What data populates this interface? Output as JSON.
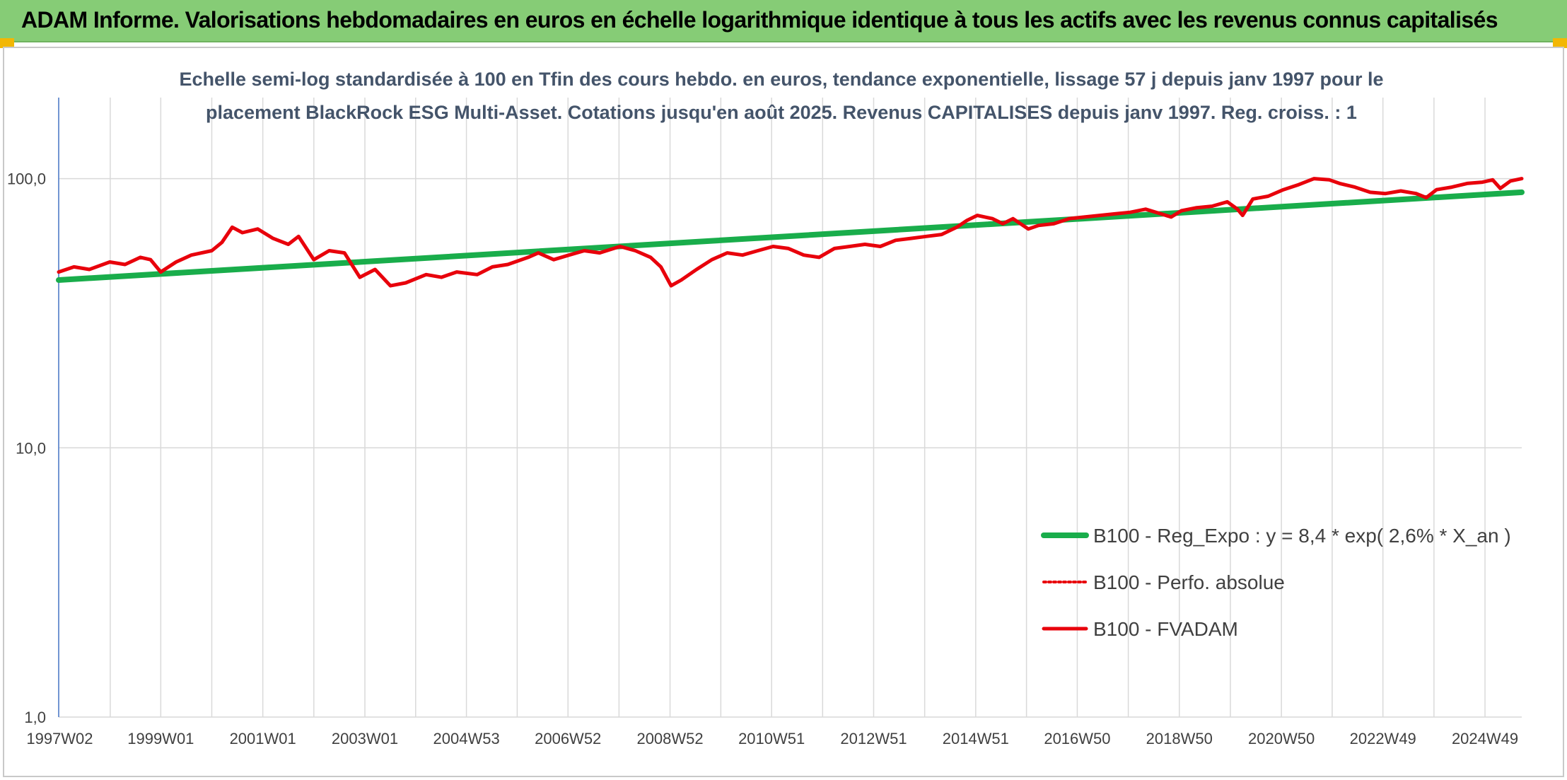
{
  "banner": {
    "title": "ADAM Informe. Valorisations hebdomadaires en euros en échelle logarithmique identique à tous les actifs avec les revenus connus capitalisés"
  },
  "colors": {
    "banner_bg": "#86cc76",
    "accent_corner": "#f2b705",
    "trend": "#19ad4b",
    "fvadam": "#e8000b",
    "perf_abs": "#e8000b",
    "grid": "#d9d9d9",
    "y_axis": "#4472c4"
  },
  "chart_data": {
    "type": "line",
    "subtitle_lines": [
      "Echelle semi-log standardisée à 100 en Tfin des cours hebdo. en euros, tendance exponentielle, lissage 57 j depuis janv 1997 pour le",
      "placement BlackRock ESG Multi-Asset. Cotations jusqu'en août 2025. Revenus CAPITALISES depuis janv 1997. Reg. croiss. : 1"
    ],
    "y_scale": "log",
    "ylim": [
      1,
      200
    ],
    "y_ticks": [
      {
        "value": 1,
        "label": "1,0"
      },
      {
        "value": 10,
        "label": "10,0"
      },
      {
        "value": 100,
        "label": "100,0"
      }
    ],
    "x_range_years": [
      1997.0,
      2025.67
    ],
    "x_tick_labels": [
      "1997W02",
      "1999W01",
      "2001W01",
      "2003W01",
      "2004W53",
      "2006W52",
      "2008W52",
      "2010W51",
      "2012W51",
      "2014W51",
      "2016W50",
      "2018W50",
      "2020W50",
      "2022W49",
      "2024W49"
    ],
    "x_tick_years": [
      1997.02,
      1999.0,
      2001.0,
      2003.0,
      2004.99,
      2006.98,
      2008.98,
      2010.97,
      2012.97,
      2014.97,
      2016.96,
      2018.96,
      2020.96,
      2022.95,
      2024.95
    ],
    "grid": true,
    "legend_position": "bottom-right",
    "series": [
      {
        "name": "B100 - Reg_Expo : y = 8,4 * exp( 2,6% *  X_an )",
        "style": "solid-thick",
        "x": [
          1997.0,
          2025.67
        ],
        "y": [
          42.0,
          89.0
        ]
      },
      {
        "name": "B100 - Perfo. absolue",
        "style": "dotted",
        "x": [],
        "y": []
      },
      {
        "name": "B100 - FVADAM",
        "style": "solid",
        "x": [
          1997.0,
          1997.3,
          1997.6,
          1998.0,
          1998.3,
          1998.6,
          1998.8,
          1999.0,
          1999.3,
          1999.6,
          2000.0,
          2000.2,
          2000.4,
          2000.6,
          2000.9,
          2001.2,
          2001.5,
          2001.7,
          2002.0,
          2002.3,
          2002.6,
          2002.9,
          2003.2,
          2003.5,
          2003.8,
          2004.2,
          2004.5,
          2004.8,
          2005.2,
          2005.5,
          2005.8,
          2006.2,
          2006.4,
          2006.7,
          2007.0,
          2007.3,
          2007.6,
          2008.0,
          2008.3,
          2008.6,
          2008.8,
          2009.0,
          2009.2,
          2009.5,
          2009.8,
          2010.1,
          2010.4,
          2010.7,
          2011.0,
          2011.3,
          2011.6,
          2011.9,
          2012.2,
          2012.5,
          2012.8,
          2013.1,
          2013.4,
          2013.7,
          2014.0,
          2014.3,
          2014.6,
          2014.8,
          2015.0,
          2015.3,
          2015.5,
          2015.7,
          2016.0,
          2016.2,
          2016.5,
          2016.8,
          2017.1,
          2017.4,
          2017.7,
          2018.0,
          2018.3,
          2018.6,
          2018.8,
          2019.0,
          2019.3,
          2019.6,
          2019.9,
          2020.1,
          2020.2,
          2020.4,
          2020.7,
          2021.0,
          2021.3,
          2021.6,
          2021.9,
          2022.1,
          2022.4,
          2022.7,
          2023.0,
          2023.3,
          2023.6,
          2023.8,
          2024.0,
          2024.3,
          2024.6,
          2024.9,
          2025.1,
          2025.25,
          2025.45,
          2025.67
        ],
        "y": [
          45,
          47,
          46,
          49,
          48,
          51,
          50,
          45,
          49,
          52,
          54,
          58,
          66,
          63,
          65,
          60,
          57,
          61,
          50,
          54,
          53,
          43,
          46,
          40,
          41,
          44,
          43,
          45,
          44,
          47,
          48,
          51,
          53,
          50,
          52,
          54,
          53,
          56,
          54,
          51,
          47,
          40,
          42,
          46,
          50,
          53,
          52,
          54,
          56,
          55,
          52,
          51,
          55,
          56,
          57,
          56,
          59,
          60,
          61,
          62,
          66,
          70,
          73,
          71,
          68,
          71,
          65,
          67,
          68,
          71,
          72,
          73,
          74,
          75,
          77,
          74,
          72,
          76,
          78,
          79,
          82,
          77,
          73,
          84,
          86,
          91,
          95,
          100,
          99,
          96,
          93,
          89,
          88,
          90,
          88,
          85,
          91,
          93,
          96,
          97,
          99,
          92,
          98,
          100
        ]
      }
    ]
  }
}
